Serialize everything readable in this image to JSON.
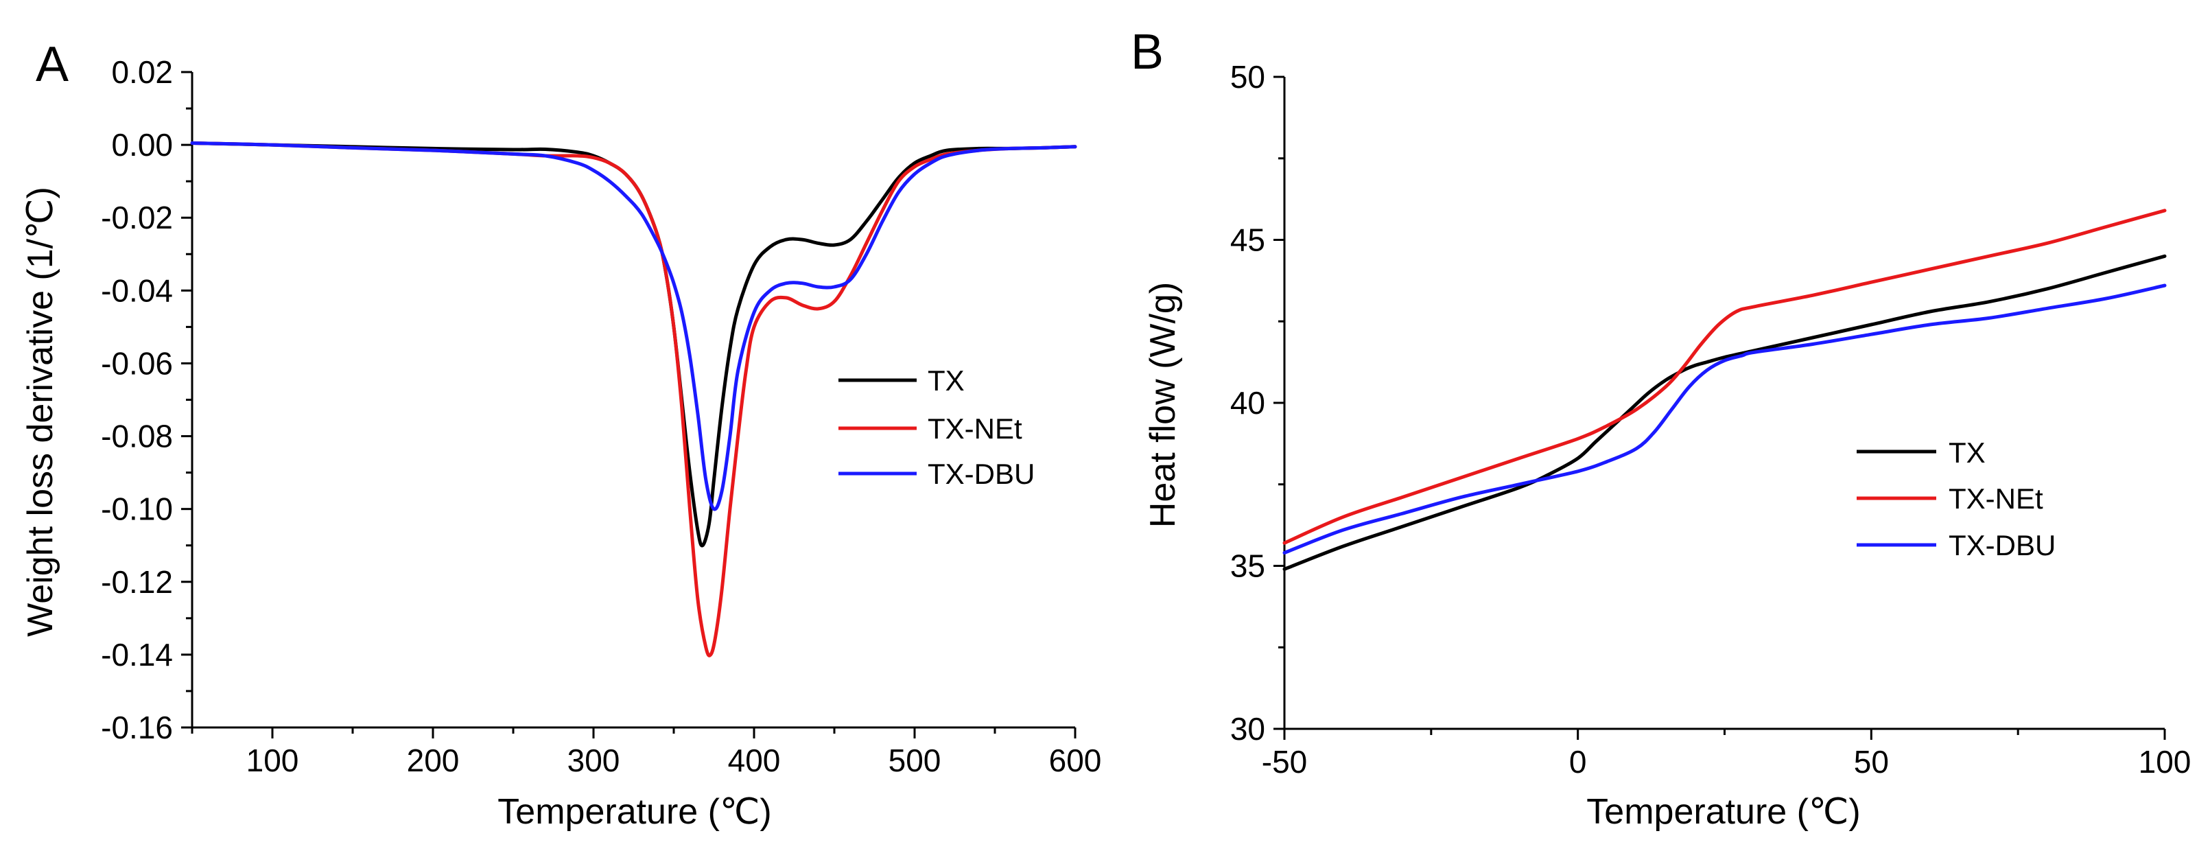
{
  "chart_data": [
    {
      "type": "line",
      "panel_label": "A",
      "title": "",
      "xlabel": "Temperature (℃)",
      "ylabel": "Weight loss derivative (1/℃)",
      "xlim": [
        50,
        600
      ],
      "ylim": [
        -0.16,
        0.02
      ],
      "xticks": [
        100,
        200,
        300,
        400,
        500,
        600
      ],
      "xtick_labels": [
        "100",
        "200",
        "300",
        "400",
        "500",
        "600"
      ],
      "yticks": [
        0.02,
        0.0,
        -0.02,
        -0.04,
        -0.06,
        -0.08,
        -0.1,
        -0.12,
        -0.14,
        -0.16
      ],
      "ytick_labels": [
        "0.02",
        "0.00",
        "-0.02",
        "-0.04",
        "-0.06",
        "-0.08",
        "-0.10",
        "-0.12",
        "-0.14",
        "-0.16"
      ],
      "legend_position": "center-right",
      "series": [
        {
          "name": "TX",
          "color": "#000000",
          "x": [
            50,
            100,
            150,
            200,
            250,
            270,
            290,
            300,
            310,
            320,
            330,
            340,
            345,
            350,
            355,
            360,
            365,
            368,
            372,
            375,
            380,
            385,
            390,
            400,
            410,
            420,
            430,
            440,
            450,
            460,
            470,
            480,
            490,
            500,
            510,
            520,
            540,
            560,
            580,
            600
          ],
          "y": [
            0.0005,
            0.0,
            -0.0005,
            -0.001,
            -0.0013,
            -0.0012,
            -0.002,
            -0.003,
            -0.005,
            -0.008,
            -0.014,
            -0.025,
            -0.035,
            -0.05,
            -0.07,
            -0.09,
            -0.106,
            -0.11,
            -0.104,
            -0.092,
            -0.072,
            -0.056,
            -0.045,
            -0.033,
            -0.028,
            -0.026,
            -0.026,
            -0.027,
            -0.0275,
            -0.026,
            -0.021,
            -0.015,
            -0.009,
            -0.005,
            -0.003,
            -0.0015,
            -0.001,
            -0.001,
            -0.0008,
            -0.0005
          ]
        },
        {
          "name": "TX-NEt",
          "color": "#e8191b",
          "x": [
            50,
            100,
            150,
            200,
            250,
            270,
            290,
            300,
            310,
            320,
            330,
            340,
            345,
            350,
            355,
            360,
            365,
            370,
            373,
            376,
            380,
            385,
            390,
            395,
            400,
            410,
            420,
            430,
            440,
            450,
            460,
            470,
            480,
            490,
            500,
            510,
            520,
            540,
            560,
            580,
            600
          ],
          "y": [
            0.0005,
            0.0,
            -0.0008,
            -0.0015,
            -0.0025,
            -0.003,
            -0.003,
            -0.0035,
            -0.005,
            -0.008,
            -0.014,
            -0.025,
            -0.035,
            -0.05,
            -0.072,
            -0.1,
            -0.125,
            -0.138,
            -0.14,
            -0.135,
            -0.122,
            -0.1,
            -0.08,
            -0.062,
            -0.05,
            -0.043,
            -0.042,
            -0.044,
            -0.045,
            -0.043,
            -0.036,
            -0.027,
            -0.018,
            -0.01,
            -0.006,
            -0.004,
            -0.0025,
            -0.0015,
            -0.001,
            -0.0008,
            -0.0005
          ]
        },
        {
          "name": "TX-DBU",
          "color": "#1a1aff",
          "x": [
            50,
            100,
            150,
            200,
            250,
            270,
            290,
            300,
            310,
            320,
            330,
            340,
            345,
            350,
            355,
            360,
            365,
            370,
            375,
            380,
            385,
            390,
            400,
            410,
            420,
            430,
            440,
            450,
            460,
            470,
            480,
            490,
            500,
            510,
            520,
            540,
            560,
            580,
            600
          ],
          "y": [
            0.0005,
            0.0,
            -0.0008,
            -0.0015,
            -0.0025,
            -0.003,
            -0.005,
            -0.007,
            -0.01,
            -0.014,
            -0.019,
            -0.027,
            -0.032,
            -0.038,
            -0.046,
            -0.058,
            -0.074,
            -0.092,
            -0.1,
            -0.095,
            -0.08,
            -0.062,
            -0.046,
            -0.04,
            -0.038,
            -0.038,
            -0.039,
            -0.039,
            -0.037,
            -0.03,
            -0.021,
            -0.013,
            -0.008,
            -0.005,
            -0.003,
            -0.0015,
            -0.001,
            -0.0008,
            -0.0005
          ]
        }
      ]
    },
    {
      "type": "line",
      "panel_label": "B",
      "title": "",
      "xlabel": "Temperature (℃)",
      "ylabel": "Heat flow (W/g)",
      "xlim": [
        -50,
        100
      ],
      "ylim": [
        30,
        50
      ],
      "xticks": [
        -50,
        0,
        50,
        100
      ],
      "xtick_labels": [
        "-50",
        "0",
        "50",
        "100"
      ],
      "yticks": [
        30,
        35,
        40,
        45,
        50
      ],
      "ytick_labels": [
        "30",
        "35",
        "40",
        "45",
        "50"
      ],
      "legend_position": "center-right",
      "series": [
        {
          "name": "TX",
          "color": "#000000",
          "x": [
            -50,
            -40,
            -30,
            -20,
            -10,
            -5,
            0,
            3,
            6,
            9,
            12,
            15,
            18,
            20,
            22,
            25,
            30,
            40,
            50,
            60,
            70,
            80,
            90,
            100
          ],
          "y": [
            34.9,
            35.6,
            36.2,
            36.8,
            37.4,
            37.8,
            38.3,
            38.8,
            39.3,
            39.8,
            40.3,
            40.7,
            41.0,
            41.15,
            41.25,
            41.4,
            41.6,
            42.0,
            42.4,
            42.8,
            43.1,
            43.5,
            44.0,
            44.5
          ]
        },
        {
          "name": "TX-NEt",
          "color": "#e8191b",
          "x": [
            -50,
            -40,
            -30,
            -20,
            -10,
            0,
            5,
            10,
            15,
            18,
            21,
            24,
            27,
            30,
            40,
            50,
            60,
            70,
            80,
            90,
            100
          ],
          "y": [
            35.7,
            36.5,
            37.1,
            37.7,
            38.3,
            38.9,
            39.3,
            39.8,
            40.5,
            41.1,
            41.8,
            42.4,
            42.8,
            42.95,
            43.3,
            43.7,
            44.1,
            44.5,
            44.9,
            45.4,
            45.9
          ]
        },
        {
          "name": "TX-DBU",
          "color": "#1a1aff",
          "x": [
            -50,
            -40,
            -30,
            -20,
            -10,
            0,
            5,
            10,
            13,
            16,
            19,
            22,
            25,
            28,
            30,
            40,
            50,
            60,
            70,
            80,
            90,
            100
          ],
          "y": [
            35.4,
            36.1,
            36.6,
            37.1,
            37.5,
            37.9,
            38.2,
            38.6,
            39.1,
            39.8,
            40.5,
            41.0,
            41.3,
            41.45,
            41.55,
            41.8,
            42.1,
            42.4,
            42.6,
            42.9,
            43.2,
            43.6
          ]
        }
      ]
    }
  ]
}
